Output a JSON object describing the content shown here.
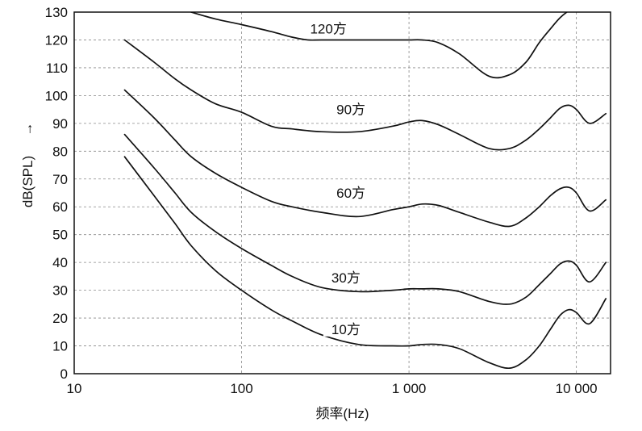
{
  "chart_data": {
    "type": "line",
    "title": "",
    "xlabel": "频率(Hz)",
    "ylabel": "dB(SPL)",
    "ylabel_arrow": "→",
    "x_scale": "log",
    "xlim": [
      10,
      16000
    ],
    "ylim": [
      0,
      130
    ],
    "grid": true,
    "x_ticks": [
      {
        "value": 10,
        "label": "10"
      },
      {
        "value": 100,
        "label": "100"
      },
      {
        "value": 1000,
        "label": "1 000"
      },
      {
        "value": 10000,
        "label": "10 000"
      }
    ],
    "y_ticks": [
      0,
      10,
      20,
      30,
      40,
      50,
      60,
      70,
      80,
      90,
      100,
      110,
      120,
      130
    ],
    "series": [
      {
        "name": "120方",
        "label_at": {
          "x": 330,
          "y": 124
        },
        "x": [
          50,
          70,
          100,
          150,
          200,
          250,
          300,
          500,
          800,
          1000,
          1200,
          1500,
          2000,
          3000,
          4000,
          5000,
          6000,
          7000,
          8000,
          9000,
          10000
        ],
        "y": [
          130,
          127.5,
          125.5,
          123,
          121,
          120,
          120,
          120,
          120,
          120,
          120,
          119,
          115,
          107,
          107.5,
          112,
          119,
          124,
          128,
          130.5,
          132
        ]
      },
      {
        "name": "90方",
        "label_at": {
          "x": 450,
          "y": 95
        },
        "x": [
          20,
          30,
          40,
          50,
          70,
          100,
          150,
          200,
          300,
          500,
          800,
          1000,
          1200,
          1500,
          2000,
          3000,
          4000,
          5000,
          6000,
          7000,
          8000,
          9000,
          10000,
          12000,
          15000
        ],
        "y": [
          120,
          112,
          106,
          102,
          97,
          94,
          89,
          88,
          87,
          87,
          89,
          90.5,
          91,
          89.5,
          86,
          81,
          81,
          84,
          88,
          92,
          95.5,
          96.5,
          95,
          90,
          93.5
        ]
      },
      {
        "name": "60方",
        "label_at": {
          "x": 450,
          "y": 65
        },
        "x": [
          20,
          30,
          40,
          50,
          70,
          100,
          150,
          200,
          300,
          500,
          800,
          1000,
          1200,
          1500,
          2000,
          3000,
          4000,
          5000,
          6000,
          7000,
          8000,
          9000,
          10000,
          12000,
          15000
        ],
        "y": [
          102,
          92,
          84,
          78,
          72,
          67,
          62,
          60,
          58,
          56.5,
          59,
          60,
          61,
          60.5,
          58,
          54.5,
          53,
          56,
          60,
          64,
          66.5,
          67,
          65,
          58.5,
          62.5
        ]
      },
      {
        "name": "30方",
        "label_at": {
          "x": 420,
          "y": 34.5
        },
        "x": [
          20,
          30,
          40,
          50,
          70,
          100,
          150,
          200,
          300,
          500,
          800,
          1000,
          1200,
          1500,
          2000,
          3000,
          4000,
          5000,
          6000,
          7000,
          8000,
          9000,
          10000,
          12000,
          15000
        ],
        "y": [
          86,
          74,
          65,
          58,
          51,
          45,
          39,
          35,
          31,
          29.5,
          30,
          30.5,
          30.5,
          30.5,
          29.5,
          26,
          25,
          27.5,
          32,
          36,
          39.5,
          40.5,
          39,
          33,
          40
        ]
      },
      {
        "name": "10方",
        "label_at": {
          "x": 420,
          "y": 16
        },
        "x": [
          20,
          30,
          40,
          50,
          70,
          100,
          150,
          200,
          300,
          500,
          800,
          1000,
          1200,
          1500,
          2000,
          3000,
          4000,
          5000,
          6000,
          7000,
          8000,
          9000,
          10000,
          12000,
          15000
        ],
        "y": [
          78,
          64,
          54,
          46,
          37,
          30,
          23,
          19,
          14,
          10.5,
          10,
          10,
          10.5,
          10.5,
          9,
          4,
          2,
          5,
          10,
          16,
          21,
          23,
          22,
          18,
          27
        ]
      }
    ]
  }
}
